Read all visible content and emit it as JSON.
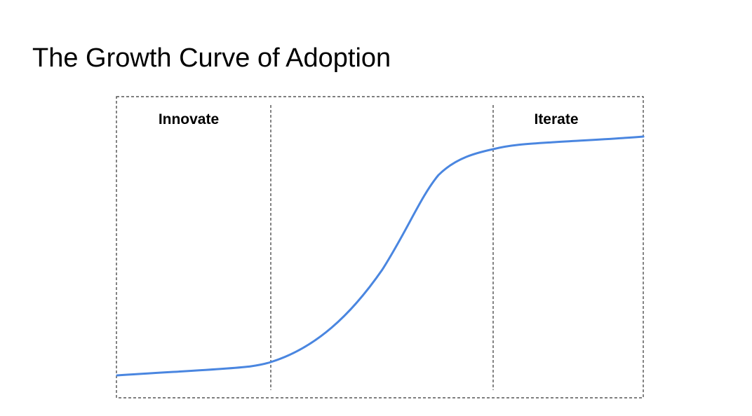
{
  "title": "The Growth Curve of Adoption",
  "phases": [
    {
      "label": "Innovate"
    },
    {
      "label": ""
    },
    {
      "label": "Iterate"
    }
  ],
  "colors": {
    "curve": "#4a86e0",
    "frame": "#333333",
    "text": "#000000",
    "background": "#ffffff"
  }
}
